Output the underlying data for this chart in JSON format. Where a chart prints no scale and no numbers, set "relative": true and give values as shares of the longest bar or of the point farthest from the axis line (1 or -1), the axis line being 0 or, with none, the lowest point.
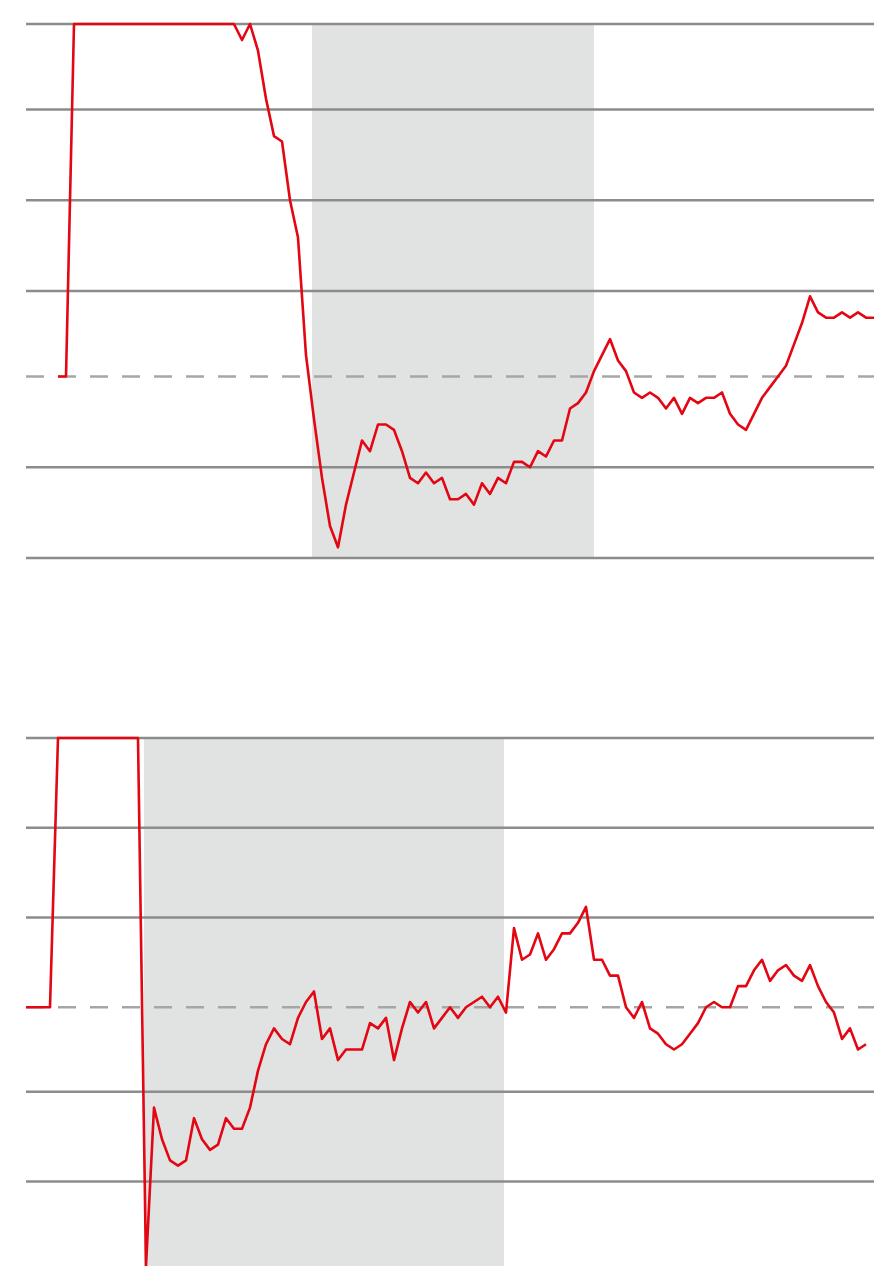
{
  "chart_data": [
    {
      "type": "line",
      "relative": true,
      "line_style": "solid",
      "categories": [
        null,
        null,
        null,
        null,
        null,
        null,
        null,
        null,
        null,
        null,
        null,
        null,
        null,
        null,
        null,
        null,
        null,
        null,
        null,
        null,
        null,
        null,
        null,
        null,
        null,
        null,
        null,
        null,
        null,
        null,
        null,
        null,
        null,
        null,
        null,
        null,
        null,
        null,
        null,
        null,
        null,
        null,
        null,
        null,
        null,
        null,
        null,
        null,
        null,
        null,
        null,
        null,
        null,
        null,
        null,
        null,
        null,
        null,
        null,
        null,
        null,
        null,
        null,
        null,
        null,
        null,
        null,
        null,
        null,
        null,
        null,
        null,
        null,
        null,
        null,
        null,
        null,
        null,
        null,
        null,
        null,
        null,
        null,
        null,
        null,
        null,
        null,
        null,
        null,
        null,
        null,
        null,
        null,
        null,
        null,
        null,
        null,
        null,
        null,
        null,
        null,
        null,
        null,
        null,
        null,
        null,
        null
      ],
      "series": [
        {
          "color": "#e30613",
          "values": [
            null,
            null,
            null,
            null,
            0.34,
            0.34,
            1,
            1,
            1,
            1,
            1,
            1,
            1,
            1,
            1,
            1,
            1,
            1,
            1,
            1,
            1,
            1,
            1,
            1,
            1,
            1,
            1,
            0.97,
            1,
            0.95,
            0.86,
            0.79,
            0.78,
            0.67,
            0.6,
            0.38,
            0.26,
            0.15,
            0.06,
            0.02,
            0.1,
            0.16,
            0.22,
            0.2,
            0.25,
            0.25,
            0.24,
            0.2,
            0.15,
            0.14,
            0.16,
            0.14,
            0.15,
            0.11,
            0.11,
            0.12,
            0.1,
            0.14,
            0.12,
            0.15,
            0.14,
            0.18,
            0.18,
            0.17,
            0.2,
            0.19,
            0.22,
            0.22,
            0.28,
            0.29,
            0.31,
            0.35,
            0.38,
            0.41,
            0.37,
            0.35,
            0.31,
            0.3,
            0.31,
            0.3,
            0.28,
            0.3,
            0.27,
            0.3,
            0.29,
            0.3,
            0.3,
            0.31,
            0.27,
            0.25,
            0.24,
            0.27,
            0.3,
            0.32,
            0.34,
            0.36,
            0.4,
            0.44,
            0.49,
            0.46,
            0.45,
            0.45,
            0.46,
            0.45,
            0.46,
            0.45,
            0.45
          ]
        }
      ],
      "ref_lines": [
        {
          "axis": "y",
          "value": 1,
          "color": "#8c8c8c",
          "line_style": "solid"
        },
        {
          "axis": "y",
          "value": 0.84,
          "color": "#8c8c8c",
          "line_style": "solid"
        },
        {
          "axis": "y",
          "value": 0.67,
          "color": "#8c8c8c",
          "line_style": "solid"
        },
        {
          "axis": "y",
          "value": 0.5,
          "color": "#8c8c8c",
          "line_style": "solid"
        },
        {
          "axis": "y",
          "value": 0.34,
          "color": "#a6a6a6",
          "line_style": "dashed"
        },
        {
          "axis": "y",
          "value": 0.17,
          "color": "#8c8c8c",
          "line_style": "solid"
        },
        {
          "axis": "y",
          "value": 0,
          "color": "#8c8c8c",
          "line_style": "solid"
        }
      ]
    },
    {
      "type": "line",
      "relative": true,
      "line_style": "solid",
      "categories": [
        null,
        null,
        null,
        null,
        null,
        null,
        null,
        null,
        null,
        null,
        null,
        null,
        null,
        null,
        null,
        null,
        null,
        null,
        null,
        null,
        null,
        null,
        null,
        null,
        null,
        null,
        null,
        null,
        null,
        null,
        null,
        null,
        null,
        null,
        null,
        null,
        null,
        null,
        null,
        null,
        null,
        null,
        null,
        null,
        null,
        null,
        null,
        null,
        null,
        null,
        null,
        null,
        null,
        null,
        null,
        null,
        null,
        null,
        null,
        null,
        null,
        null,
        null,
        null,
        null,
        null,
        null,
        null,
        null,
        null,
        null,
        null,
        null,
        null,
        null,
        null,
        null,
        null,
        null,
        null,
        null,
        null,
        null,
        null,
        null,
        null,
        null,
        null,
        null,
        null,
        null,
        null,
        null,
        null,
        null,
        null,
        null,
        null,
        null,
        null,
        null,
        null,
        null,
        null,
        null,
        null,
        null
      ],
      "series": [
        {
          "color": "#e30613",
          "values": [
            0.49,
            0.49,
            0.49,
            0.49,
            1,
            1,
            1,
            1,
            1,
            1,
            1,
            1,
            1,
            1,
            1,
            0,
            0.3,
            0.24,
            0.2,
            0.19,
            0.2,
            0.28,
            0.24,
            0.22,
            0.23,
            0.28,
            0.26,
            0.26,
            0.3,
            0.37,
            0.42,
            0.45,
            0.43,
            0.42,
            0.47,
            0.5,
            0.52,
            0.43,
            0.45,
            0.39,
            0.41,
            0.41,
            0.41,
            0.46,
            0.45,
            0.47,
            0.39,
            0.45,
            0.5,
            0.48,
            0.5,
            0.45,
            0.47,
            0.49,
            0.47,
            0.49,
            0.5,
            0.51,
            0.49,
            0.51,
            0.48,
            0.64,
            0.58,
            0.59,
            0.63,
            0.58,
            0.6,
            0.63,
            0.63,
            0.65,
            0.68,
            0.58,
            0.58,
            0.55,
            0.55,
            0.49,
            0.47,
            0.5,
            0.45,
            0.44,
            0.42,
            0.41,
            0.42,
            0.44,
            0.46,
            0.49,
            0.5,
            0.49,
            0.49,
            0.53,
            0.53,
            0.56,
            0.58,
            0.54,
            0.56,
            0.57,
            0.55,
            0.54,
            0.57,
            0.53,
            0.5,
            0.48,
            0.43,
            0.45,
            0.41,
            0.42,
            null
          ]
        }
      ],
      "ref_lines": [
        {
          "axis": "y",
          "value": 1,
          "color": "#8c8c8c",
          "line_style": "solid"
        },
        {
          "axis": "y",
          "value": 0.83,
          "color": "#8c8c8c",
          "line_style": "solid"
        },
        {
          "axis": "y",
          "value": 0.66,
          "color": "#8c8c8c",
          "line_style": "solid"
        },
        {
          "axis": "y",
          "value": 0.49,
          "color": "#a6a6a6",
          "line_style": "dashed"
        },
        {
          "axis": "y",
          "value": 0.33,
          "color": "#8c8c8c",
          "line_style": "solid"
        },
        {
          "axis": "y",
          "value": 0.16,
          "color": "#8c8c8c",
          "line_style": "solid"
        }
      ]
    }
  ]
}
